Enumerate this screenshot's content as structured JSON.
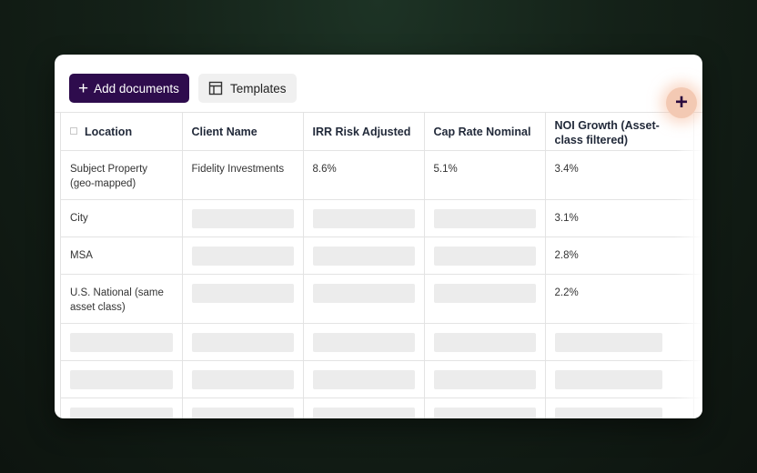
{
  "toolbar": {
    "add_documents_label": "Add documents",
    "templates_label": "Templates"
  },
  "table": {
    "headers": [
      "Location",
      "Client Name",
      "IRR Risk Adjusted",
      "Cap Rate Nominal",
      "NOI Growth (Asset-class filtered)"
    ],
    "rows": [
      {
        "location": "Subject Property (geo-mapped)",
        "client_name": "Fidelity Investments",
        "irr": "8.6%",
        "cap_rate": "5.1%",
        "noi_growth": "3.4%"
      },
      {
        "location": "City",
        "client_name": "",
        "irr": "",
        "cap_rate": "",
        "noi_growth": "3.1%"
      },
      {
        "location": "MSA",
        "client_name": "",
        "irr": "",
        "cap_rate": "",
        "noi_growth": "2.8%"
      },
      {
        "location": "U.S. National (same asset class)",
        "client_name": "",
        "irr": "",
        "cap_rate": "",
        "noi_growth": "2.2%"
      }
    ]
  },
  "colors": {
    "primary_button": "#2e0c4d",
    "add_column_button": "#f3c9b3",
    "placeholder": "#ececec"
  },
  "icons": {
    "add": "plus-icon",
    "templates": "table-layout-icon",
    "add_column": "plus-icon"
  }
}
